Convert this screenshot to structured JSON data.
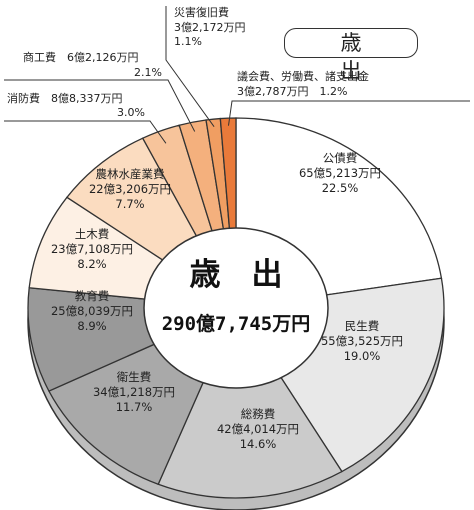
{
  "header": {
    "title": "歳　出"
  },
  "chart_data": {
    "type": "pie",
    "center_title": "歳　出",
    "total": "290億7,745万円",
    "slices": [
      {
        "name": "公債費",
        "amount": "65億5,213万円",
        "percent": "22.5%",
        "value": 22.5,
        "color": "#ffffff"
      },
      {
        "name": "民生費",
        "amount": "55億3,525万円",
        "percent": "19.0%",
        "value": 19.0,
        "color": "#e8e8e8"
      },
      {
        "name": "総務費",
        "amount": "42億4,014万円",
        "percent": "14.6%",
        "value": 14.6,
        "color": "#cbcbcb"
      },
      {
        "name": "衛生費",
        "amount": "34億1,218万円",
        "percent": "11.7%",
        "value": 11.7,
        "color": "#a9a9a9"
      },
      {
        "name": "教育費",
        "amount": "25億8,039万円",
        "percent": "8.9%",
        "value": 8.9,
        "color": "#999999"
      },
      {
        "name": "土木費",
        "amount": "23億7,108万円",
        "percent": "8.2%",
        "value": 8.2,
        "color": "#fdf0e4"
      },
      {
        "name": "農林水産業費",
        "amount": "22億3,206万円",
        "percent": "7.7%",
        "value": 7.7,
        "color": "#fbdcc0"
      },
      {
        "name": "消防費",
        "amount": "8億8,337万円",
        "percent": "3.0%",
        "value": 3.0,
        "color": "#f7c49b"
      },
      {
        "name": "商工費",
        "amount": "6億2,126万円",
        "percent": "2.1%",
        "value": 2.1,
        "color": "#f4b07d"
      },
      {
        "name": "災害復旧費",
        "amount": "3億2,172万円",
        "percent": "1.1%",
        "value": 1.1,
        "color": "#f09e62"
      },
      {
        "name": "議会費、労働費、諸支出金",
        "amount": "3億2,787万円",
        "percent": "1.2%",
        "value": 1.2,
        "color": "#e97a3a"
      }
    ]
  }
}
